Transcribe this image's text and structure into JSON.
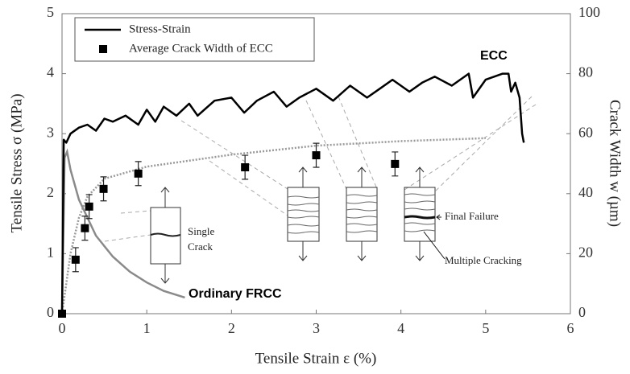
{
  "chart_data": {
    "type": "line",
    "xlabel": "Tensile Strain ε (%)",
    "ylabel": "Tensile Stress σ (MPa)",
    "y2label": "Crack Width w (µm)",
    "xlim": [
      0,
      6
    ],
    "xticks": [
      0,
      1,
      2,
      3,
      4,
      5,
      6
    ],
    "ylim": [
      0,
      5
    ],
    "yticks": [
      0,
      1,
      2,
      3,
      4,
      5
    ],
    "y2lim": [
      0,
      100
    ],
    "y2ticks": [
      0,
      20,
      40,
      60,
      80,
      100
    ],
    "legend": "upper left",
    "series": [
      {
        "name": "Stress-Strain",
        "color": "#000000",
        "style": "line",
        "x": [
          0,
          0.02,
          0.05,
          0.1,
          0.2,
          0.3,
          0.4,
          0.5,
          0.6,
          0.75,
          0.9,
          1.0,
          1.1,
          1.2,
          1.35,
          1.5,
          1.6,
          1.8,
          2.0,
          2.15,
          2.3,
          2.5,
          2.65,
          2.8,
          3.0,
          3.2,
          3.4,
          3.6,
          3.75,
          3.9,
          4.1,
          4.25,
          4.4,
          4.6,
          4.8,
          4.85,
          5.0,
          5.2,
          5.27,
          5.3,
          5.35,
          5.4,
          5.43,
          5.45
        ],
        "values": [
          0,
          2.9,
          2.85,
          3.0,
          3.1,
          3.15,
          3.05,
          3.25,
          3.2,
          3.3,
          3.15,
          3.4,
          3.2,
          3.45,
          3.3,
          3.5,
          3.3,
          3.55,
          3.6,
          3.35,
          3.55,
          3.7,
          3.45,
          3.6,
          3.75,
          3.55,
          3.8,
          3.6,
          3.75,
          3.9,
          3.7,
          3.85,
          3.95,
          3.8,
          4.0,
          3.6,
          3.9,
          4.0,
          4.0,
          3.7,
          3.85,
          3.6,
          3.0,
          2.85
        ]
      },
      {
        "name": "Average Crack Width of ECC",
        "color": "#000000",
        "style": "marker",
        "axis": "y2",
        "x": [
          0,
          0.16,
          0.27,
          0.32,
          0.49,
          0.9,
          2.16,
          3.0,
          3.93
        ],
        "values": [
          0,
          18,
          28.5,
          35.7,
          41.6,
          46.7,
          48.8,
          52.8,
          49.9
        ],
        "errors": [
          0,
          4,
          4,
          4,
          4,
          4,
          4,
          4,
          4
        ]
      }
    ],
    "frcc_curve": {
      "color": "#8a8a8a",
      "x": [
        0,
        0.03,
        0.06,
        0.1,
        0.2,
        0.4,
        0.6,
        0.8,
        1.0,
        1.2,
        1.45
      ],
      "values": [
        0,
        2.6,
        2.7,
        2.4,
        1.9,
        1.3,
        0.95,
        0.7,
        0.52,
        0.38,
        0.27
      ]
    },
    "crack_trend": {
      "color": "#999999",
      "x": [
        0,
        0.1,
        0.2,
        0.3,
        0.5,
        1.0,
        2.0,
        3.0,
        4.0,
        5.0
      ],
      "values": [
        0,
        20,
        32,
        39,
        45,
        49,
        53,
        56,
        57.5,
        58.5
      ]
    },
    "annotations": {
      "ecc": "ECC",
      "frcc": "Ordinary FRCC",
      "single_crack": [
        "Single",
        "Crack"
      ],
      "final_failure": "Final Failure",
      "multiple_cracking": "Multiple Cracking"
    }
  }
}
